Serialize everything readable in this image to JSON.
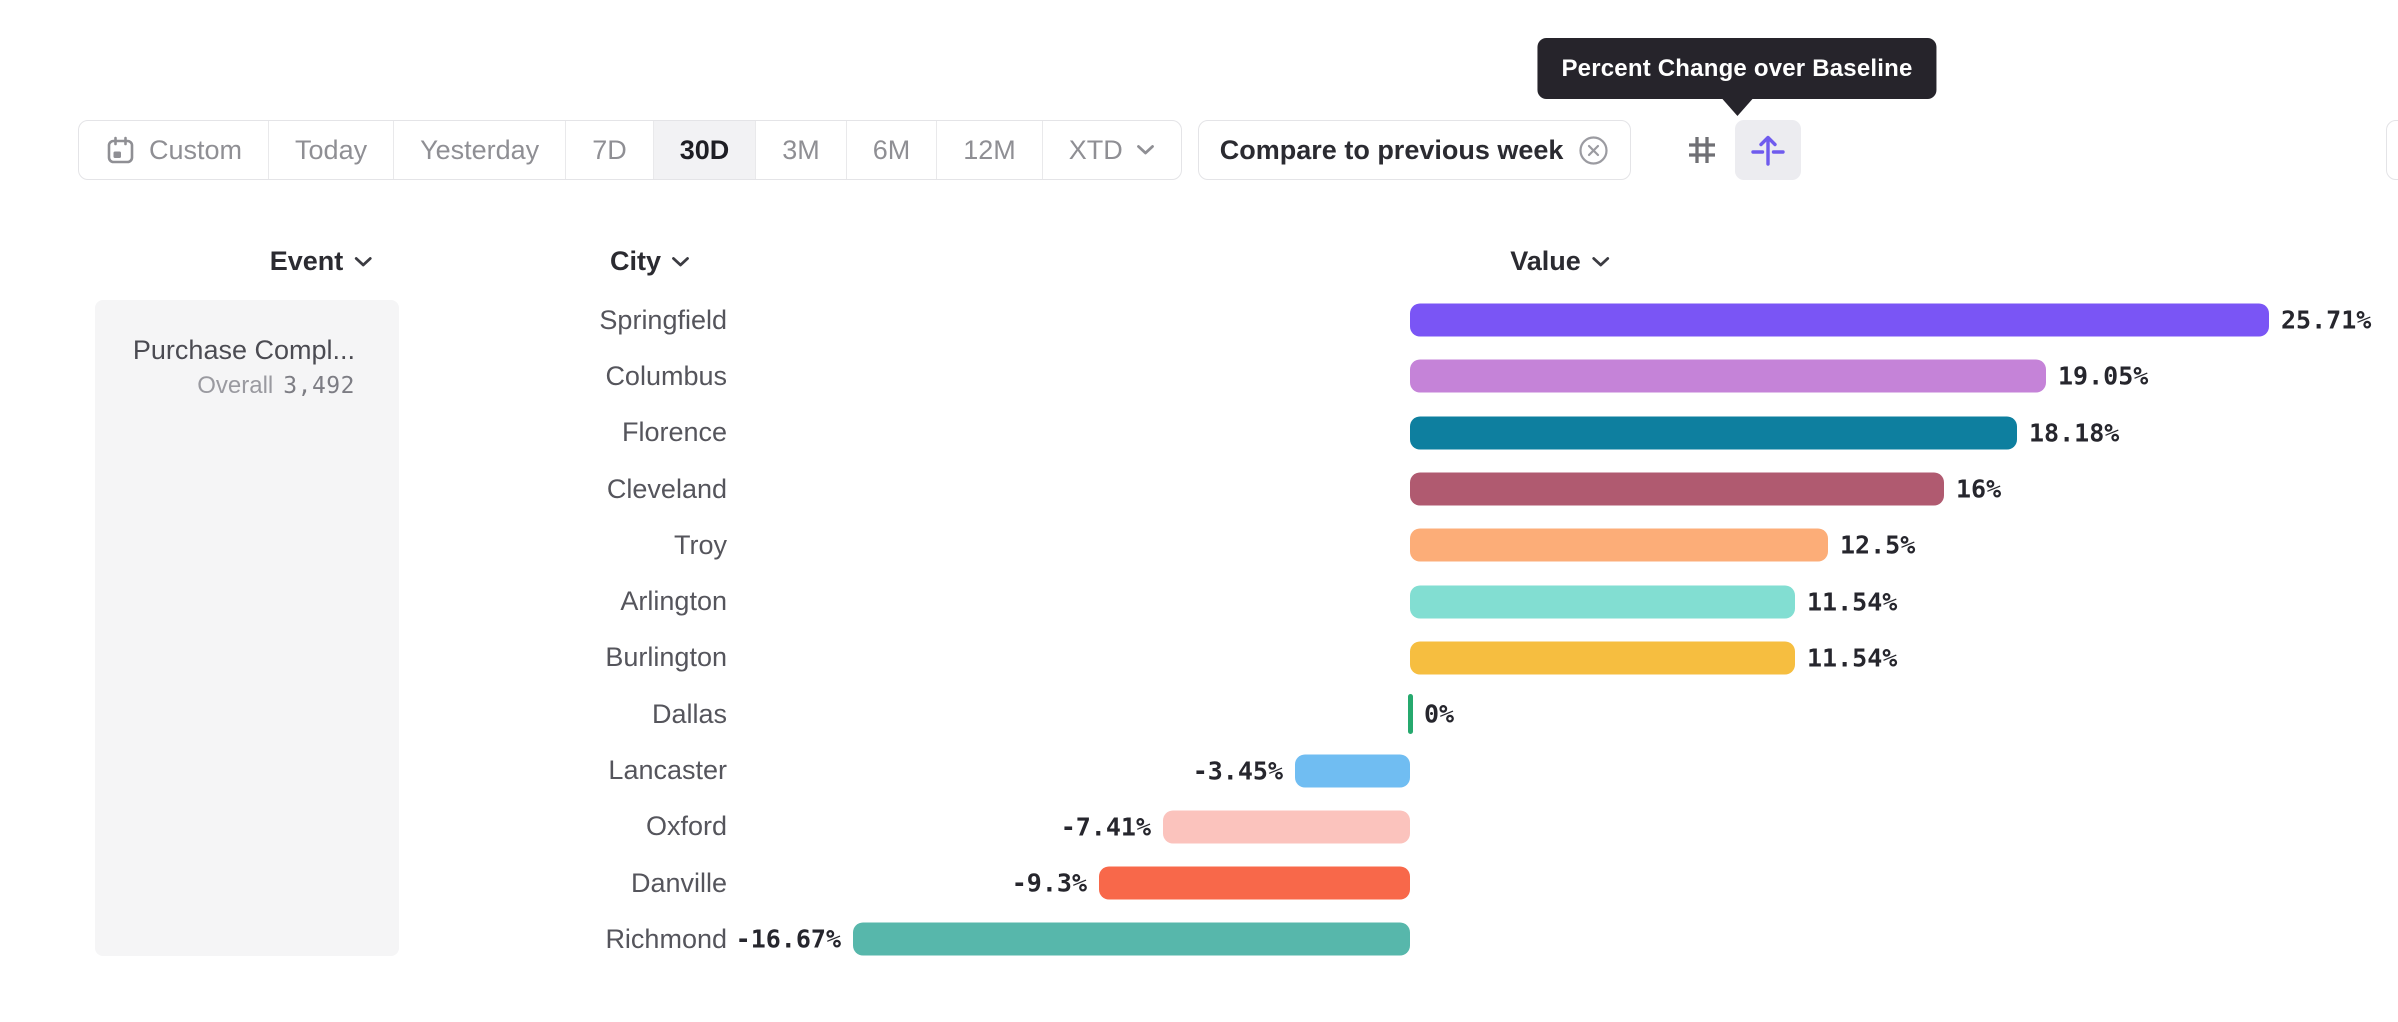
{
  "tooltip": {
    "text": "Percent Change over Baseline"
  },
  "toolbar": {
    "segments": [
      {
        "label": "Custom",
        "icon": "calendar-icon"
      },
      {
        "label": "Today"
      },
      {
        "label": "Yesterday"
      },
      {
        "label": "7D"
      },
      {
        "label": "30D",
        "selected": true
      },
      {
        "label": "3M"
      },
      {
        "label": "6M"
      },
      {
        "label": "12M"
      },
      {
        "label": "XTD",
        "chevron": true
      }
    ],
    "compare_label": "Compare to previous week",
    "view_toggles": [
      {
        "name": "grid-view",
        "icon": "grid-icon",
        "selected": false
      },
      {
        "name": "percent-change-view",
        "icon": "percent-change-icon",
        "selected": true
      }
    ]
  },
  "columns": {
    "event": "Event",
    "city": "City",
    "value": "Value"
  },
  "event_panel": {
    "name": "Purchase Compl...",
    "overall_label": "Overall",
    "overall_value": "3,492"
  },
  "chart_data": {
    "type": "bar",
    "orientation": "horizontal",
    "unit": "percent_change",
    "baseline": 0,
    "xlim": [
      -16.67,
      25.71
    ],
    "categories": [
      "Springfield",
      "Columbus",
      "Florence",
      "Cleveland",
      "Troy",
      "Arlington",
      "Burlington",
      "Dallas",
      "Lancaster",
      "Oxford",
      "Danville",
      "Richmond"
    ],
    "values": [
      25.71,
      19.05,
      18.18,
      16,
      12.5,
      11.54,
      11.54,
      0,
      -3.45,
      -7.41,
      -9.3,
      -16.67
    ],
    "value_labels": [
      "25.71%",
      "19.05%",
      "18.18%",
      "16%",
      "12.5%",
      "11.54%",
      "11.54%",
      "0%",
      "-3.45%",
      "-7.41%",
      "-9.3%",
      "-16.67%"
    ],
    "bar_colors": [
      "#7a55f5",
      "#c583d8",
      "#0e7f9f",
      "#b05a70",
      "#fcad78",
      "#82ded2",
      "#f6be40",
      "#26a96e",
      "#70bdf2",
      "#fbc3bd",
      "#f8684a",
      "#57b7ab"
    ],
    "zero_tick_color": "#26a96e"
  },
  "colors": {
    "accent_purple": "#6f5bee",
    "tooltip_bg": "#26242b",
    "border": "#e4e4e7",
    "selected_bg": "#f2f2f4",
    "value_label": "#26262d"
  }
}
